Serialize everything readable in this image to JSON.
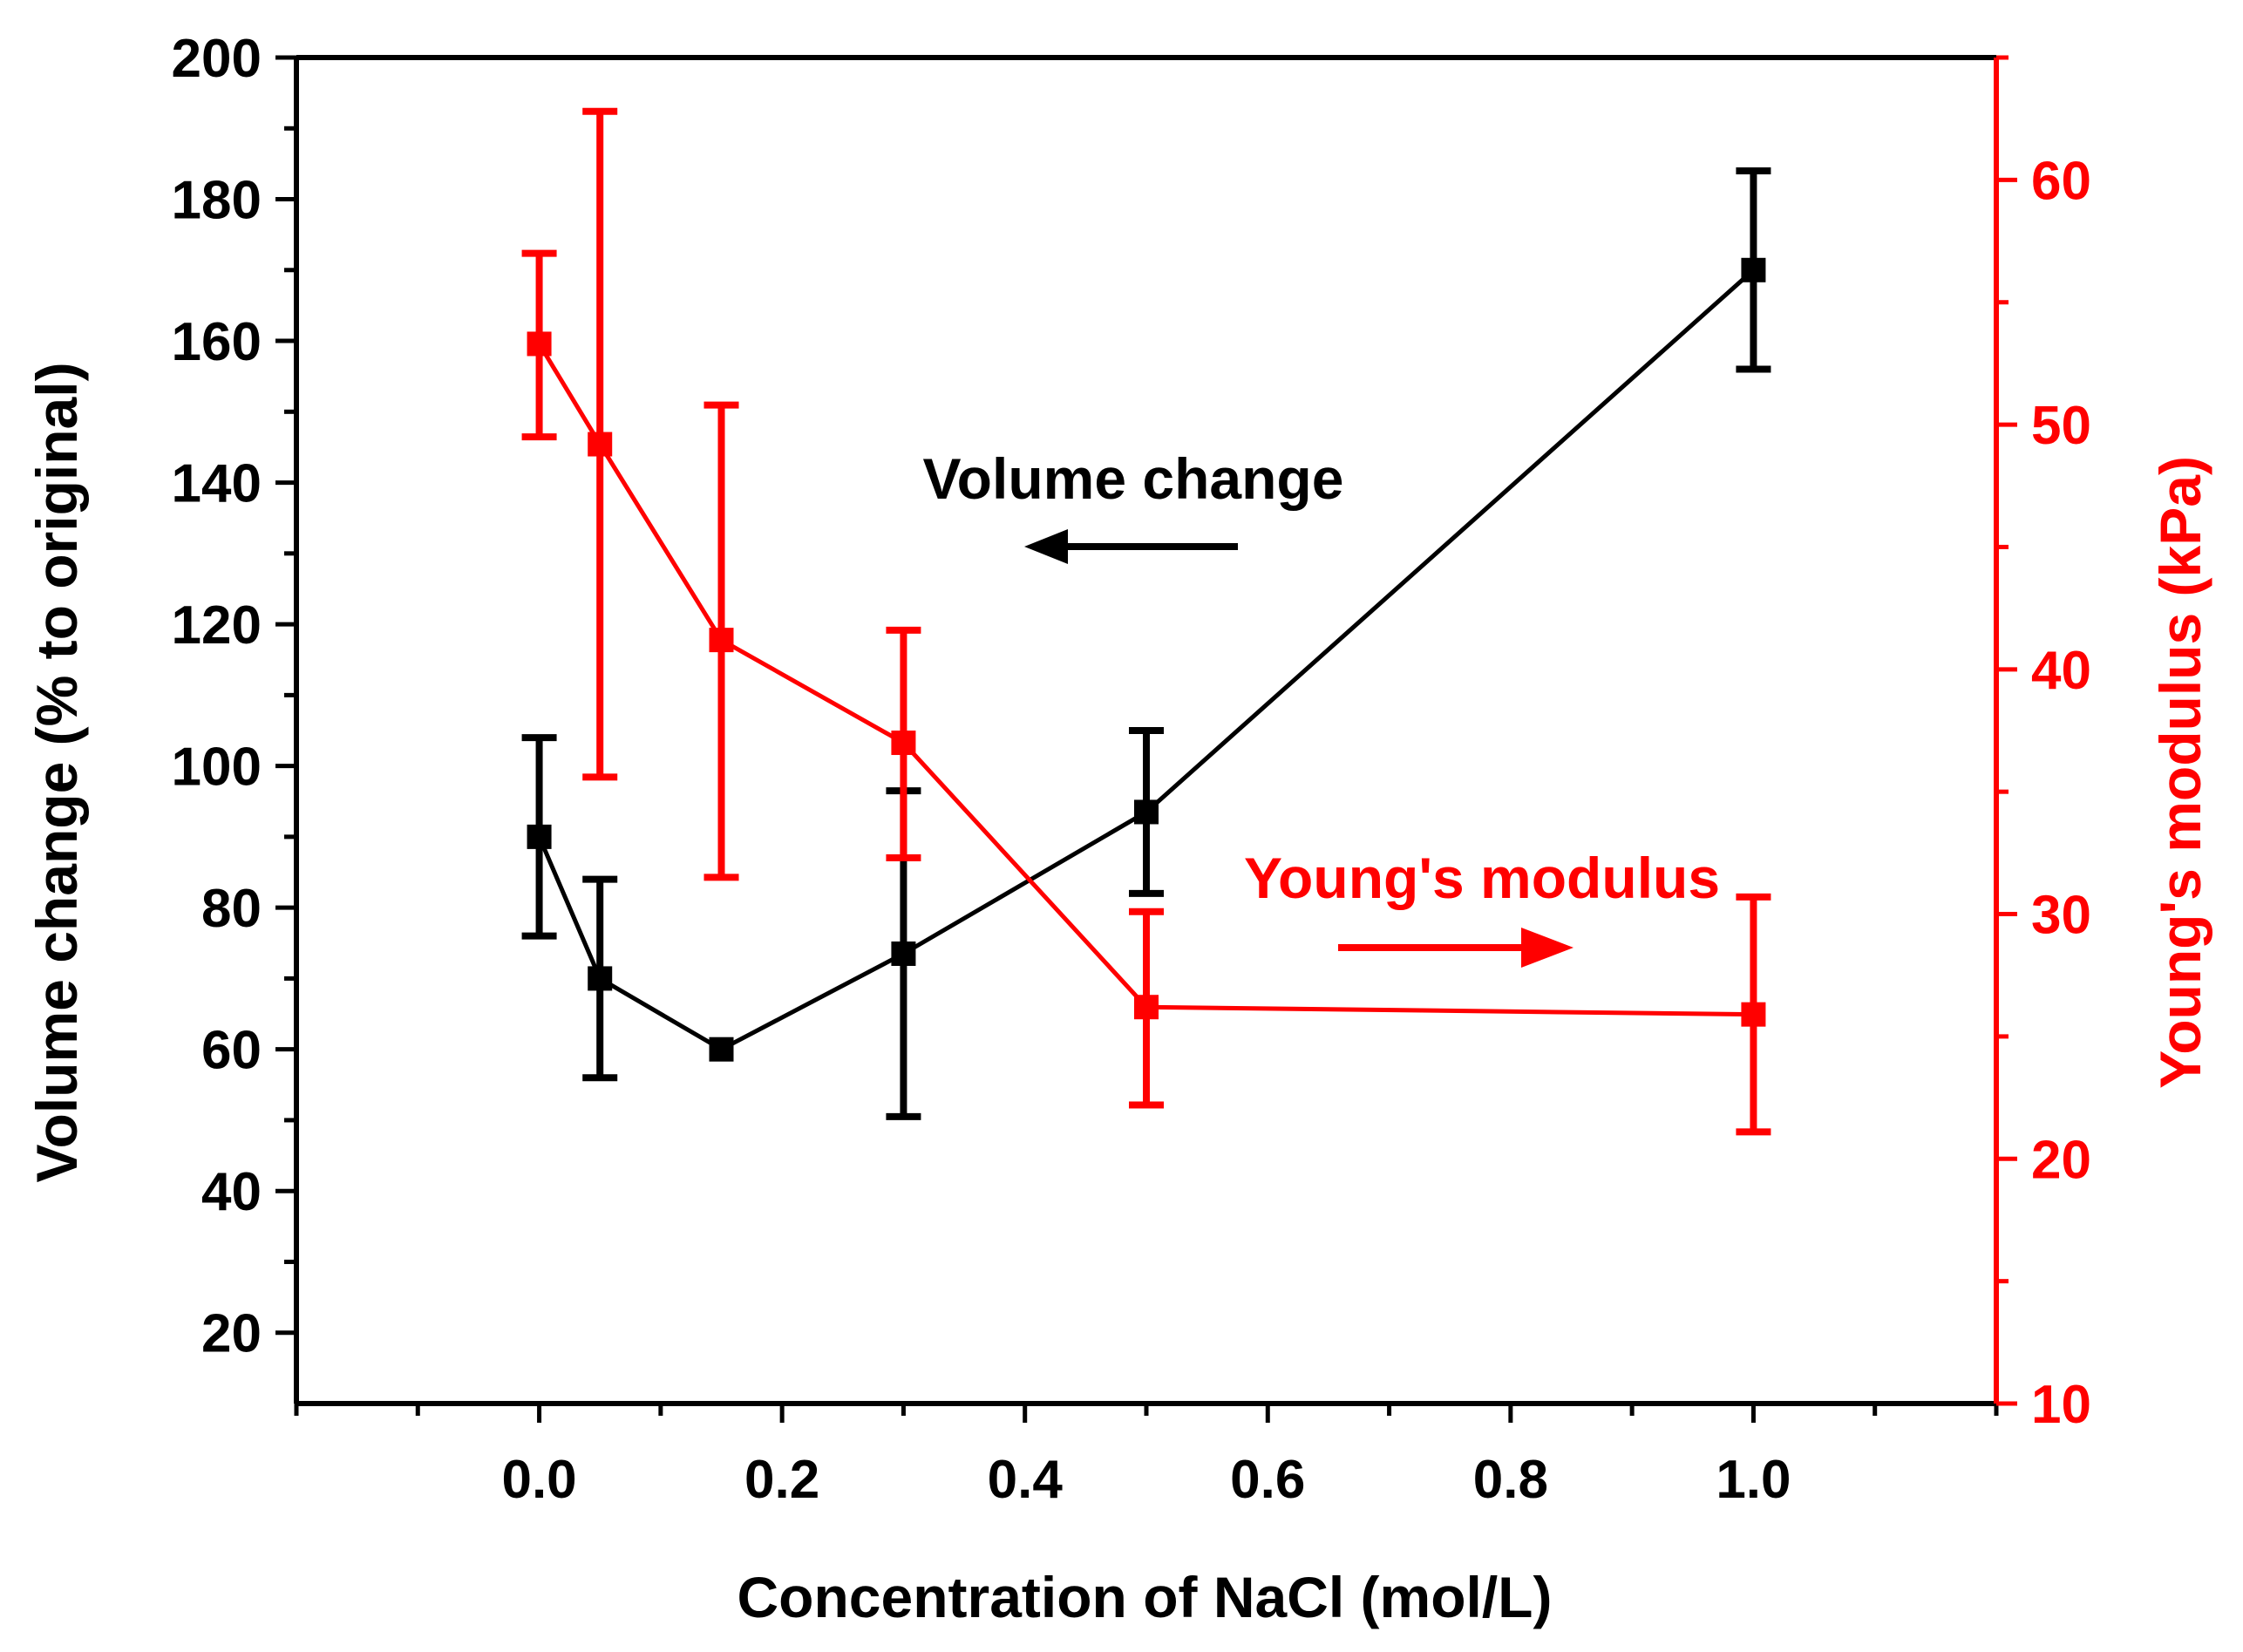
{
  "chart_data": {
    "type": "line",
    "title": "",
    "xlabel": "Concentration of NaCl (mol/L)",
    "ylabel_left": "Volume change (% to original)",
    "ylabel_right": "Young's modulus (kPa)",
    "xlim": [
      -0.2,
      1.2
    ],
    "ylim_left": [
      10,
      200
    ],
    "ylim_right": [
      10,
      65
    ],
    "x_ticks": [
      0.0,
      0.2,
      0.4,
      0.6,
      0.8,
      1.0
    ],
    "x_tick_labels": [
      "0.0",
      "0.2",
      "0.4",
      "0.6",
      "0.8",
      "1.0"
    ],
    "y_left_ticks": [
      20,
      40,
      60,
      80,
      100,
      120,
      140,
      160,
      180,
      200
    ],
    "y_left_tick_labels": [
      "20",
      "40",
      "60",
      "80",
      "100",
      "120",
      "140",
      "160",
      "180",
      "200"
    ],
    "y_right_ticks": [
      10,
      20,
      30,
      40,
      50,
      60
    ],
    "y_right_tick_labels": [
      "10",
      "20",
      "30",
      "40",
      "50",
      "60"
    ],
    "grid": false,
    "series": [
      {
        "name": "Volume change",
        "axis": "left",
        "color": "#000000",
        "marker": "square",
        "x": [
          0.0,
          0.05,
          0.15,
          0.3,
          0.5,
          1.0
        ],
        "y": [
          90,
          70,
          60,
          73.5,
          93.5,
          170
        ],
        "err_low": [
          76,
          56,
          60,
          50.5,
          82,
          156
        ],
        "err_high": [
          104,
          84,
          60,
          96.5,
          105,
          184
        ]
      },
      {
        "name": "Young's modulus",
        "axis": "right",
        "color": "#ff0000",
        "marker": "square",
        "x": [
          0.0,
          0.05,
          0.15,
          0.3,
          0.5,
          1.0
        ],
        "y": [
          53.3,
          49.2,
          41.2,
          37.0,
          26.2,
          25.9
        ],
        "err_low": [
          49.5,
          35.6,
          31.5,
          32.3,
          22.2,
          21.1
        ],
        "err_high": [
          57.0,
          62.8,
          50.8,
          41.6,
          30.1,
          30.7
        ]
      }
    ],
    "annotations": [
      {
        "text": "Volume change",
        "series": "Volume change",
        "arrow": "left",
        "color": "#000000"
      },
      {
        "text": "Young's modulus",
        "series": "Young's modulus",
        "arrow": "right",
        "color": "#ff0000"
      }
    ]
  }
}
